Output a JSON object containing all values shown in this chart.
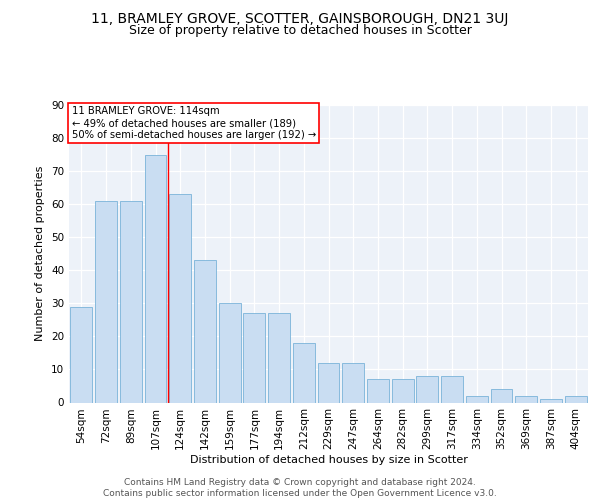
{
  "title": "11, BRAMLEY GROVE, SCOTTER, GAINSBOROUGH, DN21 3UJ",
  "subtitle": "Size of property relative to detached houses in Scotter",
  "xlabel": "Distribution of detached houses by size in Scotter",
  "ylabel": "Number of detached properties",
  "categories": [
    "54sqm",
    "72sqm",
    "89sqm",
    "107sqm",
    "124sqm",
    "142sqm",
    "159sqm",
    "177sqm",
    "194sqm",
    "212sqm",
    "229sqm",
    "247sqm",
    "264sqm",
    "282sqm",
    "299sqm",
    "317sqm",
    "334sqm",
    "352sqm",
    "369sqm",
    "387sqm",
    "404sqm"
  ],
  "values": [
    29,
    61,
    61,
    75,
    63,
    43,
    30,
    27,
    27,
    18,
    12,
    12,
    7,
    7,
    8,
    8,
    2,
    4,
    2,
    1,
    2
  ],
  "bar_color": "#c9ddf2",
  "bar_edge_color": "#7ab3d9",
  "background_color": "#edf2f9",
  "grid_color": "#ffffff",
  "redline_x": 3.5,
  "annotation_text": "11 BRAMLEY GROVE: 114sqm\n← 49% of detached houses are smaller (189)\n50% of semi-detached houses are larger (192) →",
  "annotation_box_color": "white",
  "annotation_box_edge": "red",
  "ylim": [
    0,
    90
  ],
  "yticks": [
    0,
    10,
    20,
    30,
    40,
    50,
    60,
    70,
    80,
    90
  ],
  "footer": "Contains HM Land Registry data © Crown copyright and database right 2024.\nContains public sector information licensed under the Open Government Licence v3.0.",
  "title_fontsize": 10,
  "subtitle_fontsize": 9,
  "axis_label_fontsize": 8,
  "tick_fontsize": 7.5,
  "footer_fontsize": 6.5
}
